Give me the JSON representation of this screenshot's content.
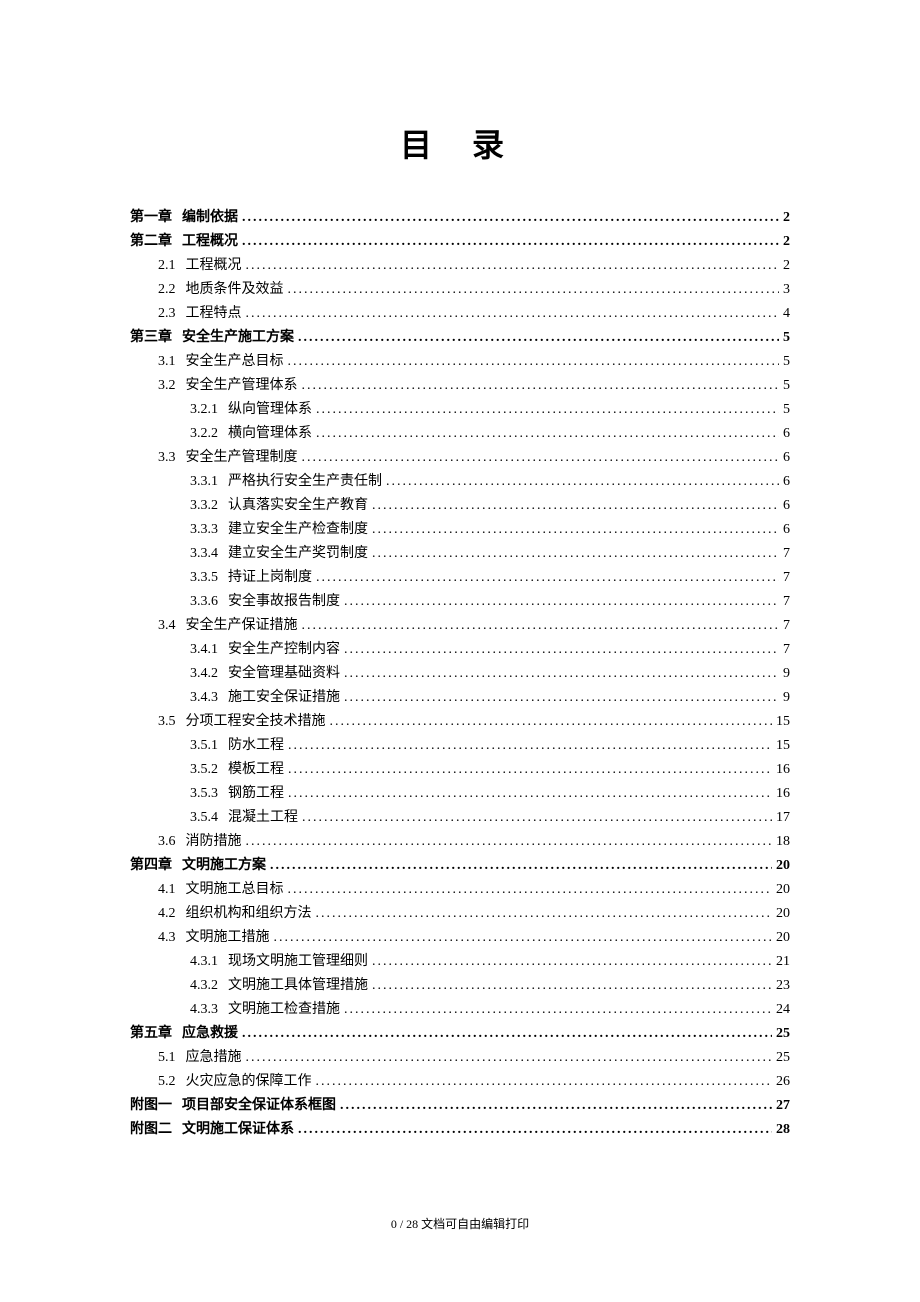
{
  "title": "目 录",
  "footer": "0 / 28 文档可自由编辑打印",
  "toc": [
    {
      "number": "第一章",
      "label": "编制依据",
      "page": "2",
      "indent": 0,
      "bold": true
    },
    {
      "number": "第二章",
      "label": "工程概况",
      "page": "2",
      "indent": 0,
      "bold": true
    },
    {
      "number": "2.1",
      "label": "工程概况",
      "page": "2",
      "indent": 1,
      "bold": false
    },
    {
      "number": "2.2",
      "label": "地质条件及效益",
      "page": "3",
      "indent": 1,
      "bold": false
    },
    {
      "number": "2.3",
      "label": "工程特点",
      "page": "4",
      "indent": 1,
      "bold": false
    },
    {
      "number": "第三章",
      "label": "安全生产施工方案",
      "page": "5",
      "indent": 0,
      "bold": true
    },
    {
      "number": "3.1",
      "label": "安全生产总目标",
      "page": "5",
      "indent": 1,
      "bold": false
    },
    {
      "number": "3.2",
      "label": "安全生产管理体系",
      "page": "5",
      "indent": 1,
      "bold": false
    },
    {
      "number": "3.2.1",
      "label": "纵向管理体系",
      "page": "5",
      "indent": 2,
      "bold": false
    },
    {
      "number": "3.2.2",
      "label": "横向管理体系",
      "page": "6",
      "indent": 2,
      "bold": false
    },
    {
      "number": "3.3",
      "label": "安全生产管理制度",
      "page": "6",
      "indent": 1,
      "bold": false
    },
    {
      "number": "3.3.1",
      "label": "严格执行安全生产责任制",
      "page": "6",
      "indent": 2,
      "bold": false
    },
    {
      "number": "3.3.2",
      "label": "认真落实安全生产教育",
      "page": "6",
      "indent": 2,
      "bold": false
    },
    {
      "number": "3.3.3",
      "label": "建立安全生产检查制度",
      "page": "6",
      "indent": 2,
      "bold": false
    },
    {
      "number": "3.3.4",
      "label": "建立安全生产奖罚制度",
      "page": "7",
      "indent": 2,
      "bold": false
    },
    {
      "number": "3.3.5",
      "label": "持证上岗制度",
      "page": "7",
      "indent": 2,
      "bold": false
    },
    {
      "number": "3.3.6",
      "label": "安全事故报告制度",
      "page": "7",
      "indent": 2,
      "bold": false
    },
    {
      "number": "3.4",
      "label": "安全生产保证措施",
      "page": "7",
      "indent": 1,
      "bold": false
    },
    {
      "number": "3.4.1",
      "label": "安全生产控制内容",
      "page": "7",
      "indent": 2,
      "bold": false
    },
    {
      "number": "3.4.2",
      "label": "安全管理基础资料",
      "page": "9",
      "indent": 2,
      "bold": false
    },
    {
      "number": "3.4.3",
      "label": "施工安全保证措施",
      "page": "9",
      "indent": 2,
      "bold": false
    },
    {
      "number": "3.5",
      "label": "分项工程安全技术措施",
      "page": "15",
      "indent": 1,
      "bold": false
    },
    {
      "number": "3.5.1",
      "label": "防水工程",
      "page": "15",
      "indent": 2,
      "bold": false
    },
    {
      "number": "3.5.2",
      "label": "模板工程",
      "page": "16",
      "indent": 2,
      "bold": false
    },
    {
      "number": "3.5.3",
      "label": "钢筋工程",
      "page": "16",
      "indent": 2,
      "bold": false
    },
    {
      "number": "3.5.4",
      "label": "混凝土工程",
      "page": "17",
      "indent": 2,
      "bold": false
    },
    {
      "number": "3.6",
      "label": "消防措施",
      "page": "18",
      "indent": 1,
      "bold": false
    },
    {
      "number": "第四章",
      "label": "文明施工方案",
      "page": "20",
      "indent": 0,
      "bold": true
    },
    {
      "number": "4.1",
      "label": "文明施工总目标",
      "page": "20",
      "indent": 1,
      "bold": false
    },
    {
      "number": "4.2",
      "label": "组织机构和组织方法",
      "page": "20",
      "indent": 1,
      "bold": false
    },
    {
      "number": "4.3",
      "label": "文明施工措施",
      "page": "20",
      "indent": 1,
      "bold": false
    },
    {
      "number": "4.3.1",
      "label": "现场文明施工管理细则",
      "page": "21",
      "indent": 2,
      "bold": false
    },
    {
      "number": "4.3.2",
      "label": "文明施工具体管理措施",
      "page": "23",
      "indent": 2,
      "bold": false
    },
    {
      "number": "4.3.3",
      "label": "文明施工检查措施",
      "page": "24",
      "indent": 2,
      "bold": false
    },
    {
      "number": "第五章",
      "label": "应急救援",
      "page": "25",
      "indent": 0,
      "bold": true
    },
    {
      "number": "5.1",
      "label": "应急措施",
      "page": "25",
      "indent": 1,
      "bold": false
    },
    {
      "number": "5.2",
      "label": "火灾应急的保障工作",
      "page": "26",
      "indent": 1,
      "bold": false
    },
    {
      "number": "附图一",
      "label": "项目部安全保证体系框图",
      "page": "27",
      "indent": 0,
      "bold": true
    },
    {
      "number": "附图二",
      "label": "文明施工保证体系",
      "page": "28",
      "indent": 0,
      "bold": true
    }
  ]
}
